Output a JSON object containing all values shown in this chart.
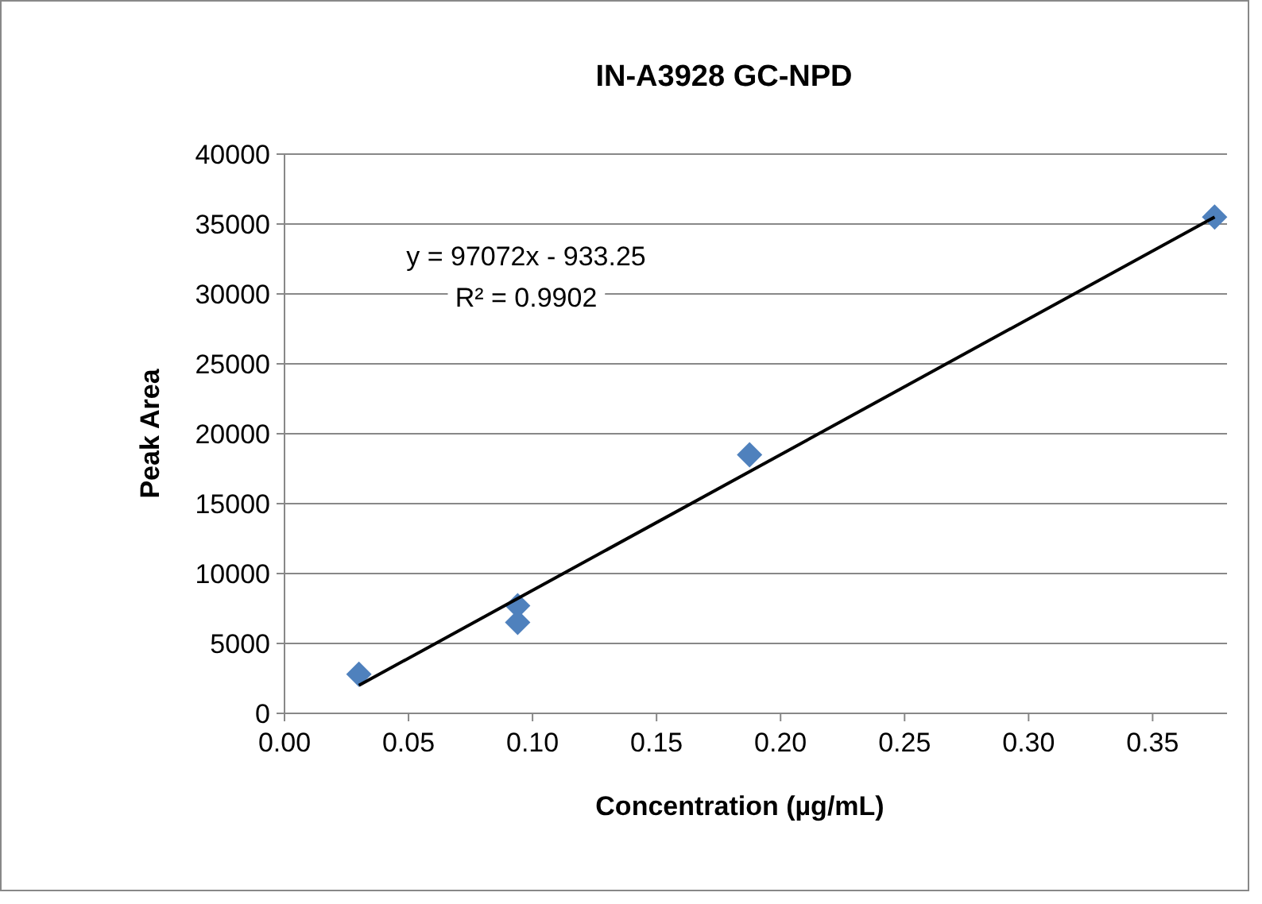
{
  "chart_data": {
    "type": "scatter",
    "title": "IN-A3928 GC-NPD",
    "xlabel": "Concentration (µg/mL)",
    "ylabel": "Peak Area",
    "xlim": [
      0,
      0.38
    ],
    "xticks": [
      {
        "value": 0,
        "label": "0.00"
      },
      {
        "value": 0.05,
        "label": "0.05"
      },
      {
        "value": 0.1,
        "label": "0.10"
      },
      {
        "value": 0.15,
        "label": "0.15"
      },
      {
        "value": 0.2,
        "label": "0.20"
      },
      {
        "value": 0.25,
        "label": "0.25"
      },
      {
        "value": 0.3,
        "label": "0.30"
      },
      {
        "value": 0.35,
        "label": "0.35"
      }
    ],
    "ylim": [
      0,
      40000
    ],
    "yticks": [
      0,
      5000,
      10000,
      15000,
      20000,
      25000,
      30000,
      35000,
      40000
    ],
    "grid": "y",
    "series": [
      {
        "type": "scatter",
        "color": "#4f81bd",
        "marker": "diamond",
        "x": [
          0.03,
          0.094,
          0.094,
          0.1875,
          0.375
        ],
        "values": [
          2800,
          7700,
          6500,
          18500,
          35500
        ]
      },
      {
        "type": "line",
        "color": "#000000",
        "marker": "none",
        "x": [
          0.03,
          0.375
        ],
        "values": [
          2000,
          35500
        ]
      }
    ],
    "annotations": [
      "y = 97072x - 933.25",
      "R² = 0.9902"
    ]
  }
}
